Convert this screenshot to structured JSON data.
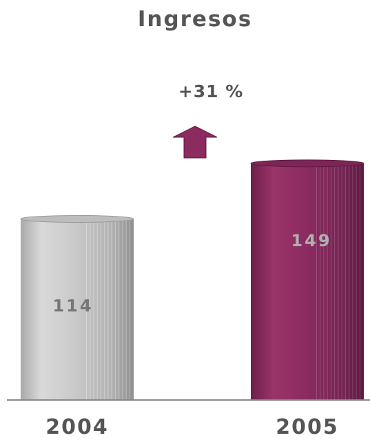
{
  "chart_data": {
    "type": "bar",
    "title": "Ingresos",
    "categories": [
      "2004",
      "2005"
    ],
    "values": [
      114,
      149
    ],
    "value_labels": [
      "114",
      "149"
    ],
    "annotation": "+31 %",
    "xlabel": "",
    "ylabel": "",
    "ylim": [
      0,
      165
    ],
    "grid": false,
    "legend": "none",
    "colors": {
      "bars": [
        "#c8c8c8",
        "#8b2b60"
      ],
      "value_labels": [
        "#777777",
        "#b0b0b0"
      ],
      "arrow": "#8b2b60",
      "axis": "#888888",
      "text": "#555555"
    }
  }
}
